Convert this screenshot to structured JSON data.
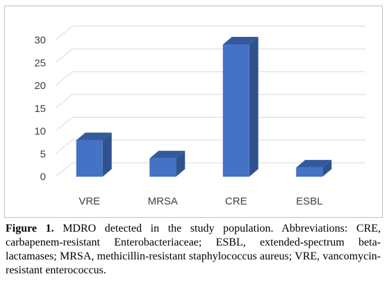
{
  "chart_data": {
    "type": "bar",
    "style": "3d-column",
    "categories": [
      "VRE",
      "MRSA",
      "CRE",
      "ESBL"
    ],
    "values": [
      8,
      4,
      29,
      2
    ],
    "ylim": [
      0,
      30
    ],
    "yticks": [
      0,
      5,
      10,
      15,
      20,
      25,
      30
    ],
    "ytick_labels": [
      "0",
      "5",
      "10",
      "15",
      "20",
      "25",
      "30"
    ],
    "grid": true,
    "legend": "none",
    "bar_color": "#4472c4",
    "bar_top_color": "#345a9e",
    "bar_side_color": "#2f528f",
    "grid_color": "#d9d9d9"
  },
  "caption": {
    "label": "Figure 1.",
    "text": " MDRO detected in the study population. Abbreviations: CRE, carbapenem-resistant Enterobacteriaceae; ESBL, extended-spectrum beta-lactamases; MRSA, methicillin-resistant staphylococcus aureus; VRE, vancomycin-resistant enterococcus."
  }
}
